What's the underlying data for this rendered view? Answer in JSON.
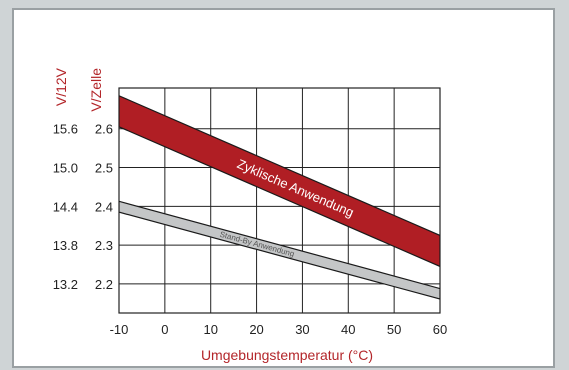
{
  "chart_data": {
    "type": "area",
    "ylabel_left": "V/12V",
    "ylabel_right": "V/Zelle",
    "xlabel": "Umgebungstemperatur (°C)",
    "x_ticks": [
      "-10",
      "0",
      "10",
      "20",
      "30",
      "40",
      "50",
      "60"
    ],
    "xlim": [
      -10,
      60
    ],
    "ylim": [
      2.125,
      2.705
    ],
    "grid": true,
    "y_ticks": [
      {
        "cell": 2.6,
        "v12": 15.6,
        "cell_label": "2.6",
        "v12_label": "15.6"
      },
      {
        "cell": 2.5,
        "v12": 15.0,
        "cell_label": "2.5",
        "v12_label": "15.0"
      },
      {
        "cell": 2.4,
        "v12": 14.4,
        "cell_label": "2.4",
        "v12_label": "14.4"
      },
      {
        "cell": 2.3,
        "v12": 13.8,
        "cell_label": "2.3",
        "v12_label": "13.8"
      },
      {
        "cell": 2.2,
        "v12": 13.2,
        "cell_label": "2.2",
        "v12_label": "13.2"
      }
    ],
    "series": [
      {
        "name": "Zyklische Anwendung",
        "color": "#b01e24",
        "x": [
          -10,
          60
        ],
        "upper": [
          2.685,
          2.325
        ],
        "lower": [
          2.605,
          2.245
        ]
      },
      {
        "name": "Stand-By Anwendung",
        "color": "#c4c6c7",
        "x": [
          -10,
          60
        ],
        "upper": [
          2.413,
          2.188
        ],
        "lower": [
          2.385,
          2.161
        ]
      }
    ]
  }
}
